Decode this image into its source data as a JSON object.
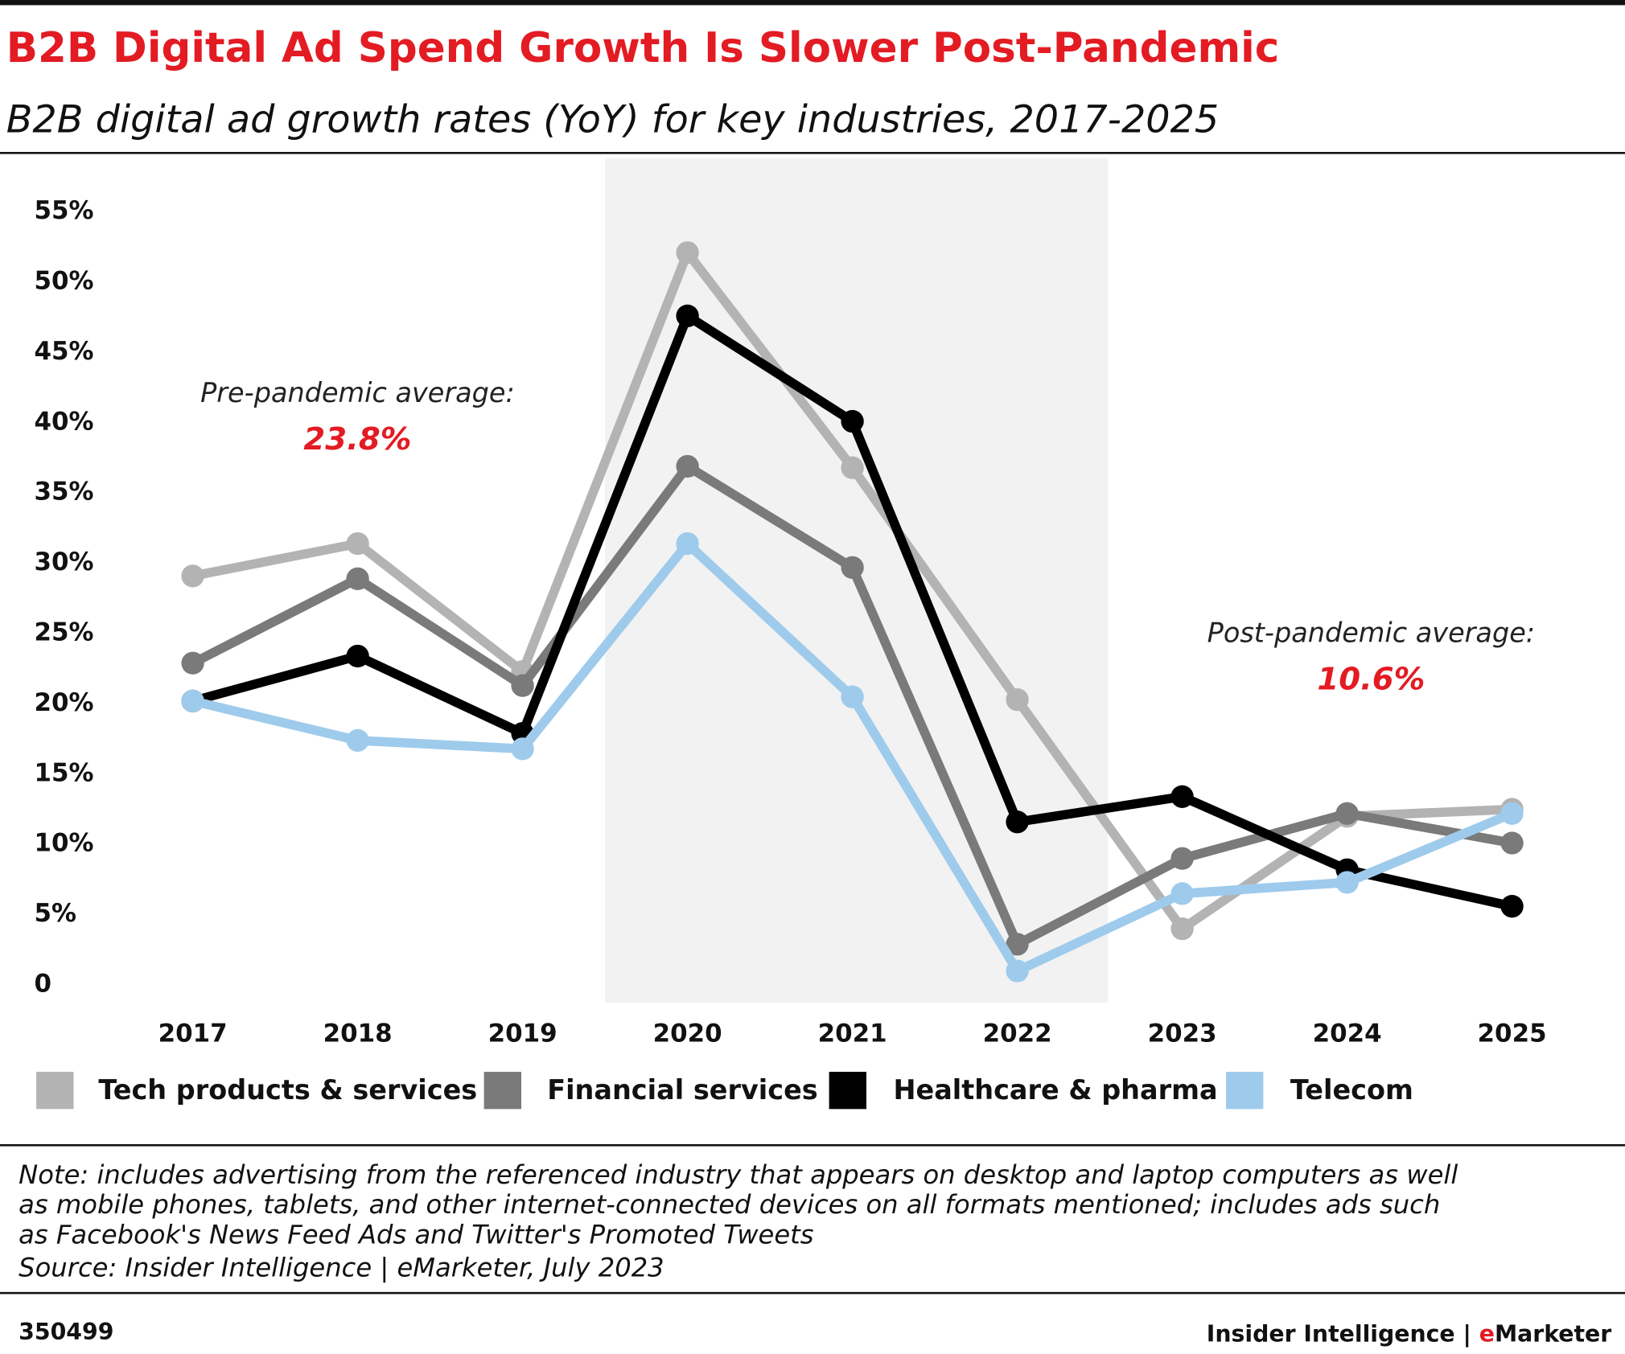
{
  "chart_data": {
    "type": "line",
    "title": "B2B Digital Ad Spend Growth Is Slower Post-Pandemic",
    "subtitle": "B2B digital ad growth rates (YoY) for key industries, 2017-2025",
    "categories": [
      "2017",
      "2018",
      "2019",
      "2020",
      "2021",
      "2022",
      "2023",
      "2024",
      "2025"
    ],
    "series": [
      {
        "name": "Tech products & services",
        "color": "#b3b3b3",
        "values": [
          29.1,
          31.4,
          22.3,
          52.1,
          36.8,
          20.3,
          4.0,
          12.0,
          12.5
        ]
      },
      {
        "name": "Financial services",
        "color": "#7a7a7a",
        "values": [
          22.9,
          28.9,
          21.3,
          36.9,
          29.7,
          2.9,
          9.0,
          12.2,
          10.1
        ]
      },
      {
        "name": "Healthcare & pharma",
        "color": "#000000",
        "values": [
          20.2,
          23.4,
          17.9,
          47.6,
          40.1,
          11.6,
          13.4,
          8.2,
          5.6
        ]
      },
      {
        "name": "Telecom",
        "color": "#9ecbec",
        "values": [
          20.2,
          17.4,
          16.8,
          31.4,
          20.5,
          1.0,
          6.5,
          7.3,
          12.2
        ]
      }
    ],
    "ylim": [
      0,
      55
    ],
    "yticks": [
      0,
      {
        "value": 5,
        "label": "5%"
      },
      {
        "value": 10,
        "label": "10%"
      },
      {
        "value": 15,
        "label": "15%"
      },
      {
        "value": 20,
        "label": "20%"
      },
      {
        "value": 25,
        "label": "25%"
      },
      {
        "value": 30,
        "label": "30%"
      },
      {
        "value": 35,
        "label": "35%"
      },
      {
        "value": 40,
        "label": "40%"
      },
      {
        "value": 45,
        "label": "45%"
      },
      {
        "value": 50,
        "label": "50%"
      },
      {
        "value": 55,
        "label": "55%"
      }
    ],
    "grid": false,
    "annotations": [
      {
        "text": "Pre-pandemic average:",
        "value": 23.8,
        "value_label": "23.8%"
      },
      {
        "text": "Post-pandemic average:",
        "value": 10.6,
        "value_label": "10.6%"
      }
    ]
  },
  "footer": {
    "note": [
      "Note: includes advertising from the referenced industry that appears on desktop and laptop computers as well",
      "as mobile phones, tablets, and other internet-connected devices on all formats mentioned; includes ads such",
      "as Facebook's News Feed Ads and Twitter's Promoted Tweets"
    ],
    "source": "Source: Insider Intelligence | eMarketer, July 2023",
    "id": "350499",
    "brand": [
      "Insider Intelligence | ",
      "e",
      "Marketer"
    ]
  }
}
